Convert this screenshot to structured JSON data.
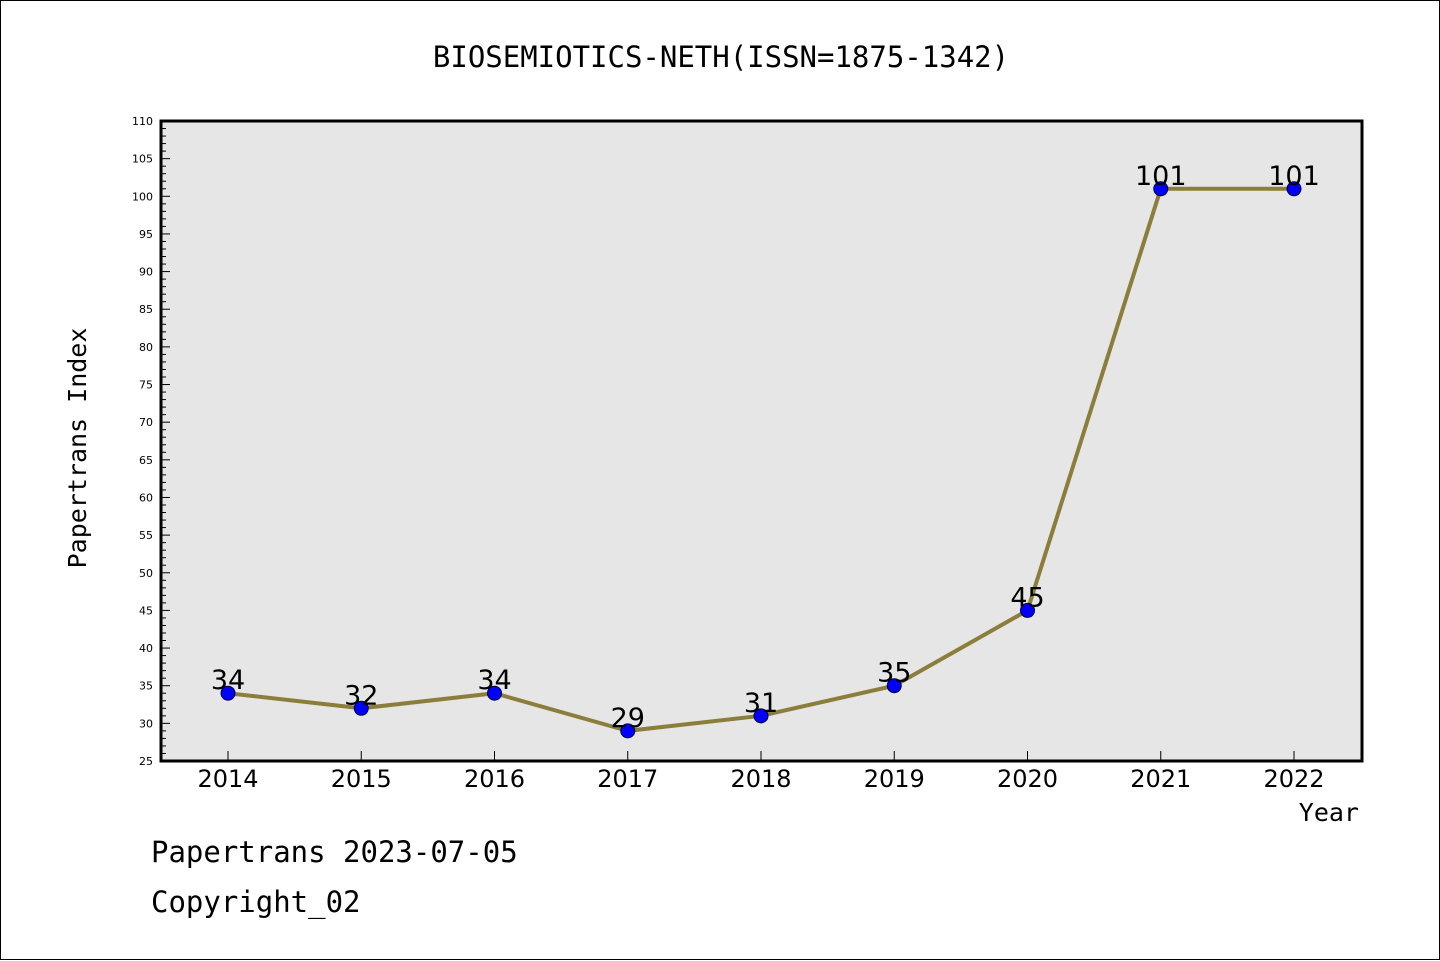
{
  "chart_data": {
    "type": "line",
    "title": "BIOSEMIOTICS-NETH(ISSN=1875-1342)",
    "xlabel": "Year",
    "ylabel": "Papertrans Index",
    "categories": [
      "2014",
      "2015",
      "2016",
      "2017",
      "2018",
      "2019",
      "2020",
      "2021",
      "2022"
    ],
    "series": [
      {
        "values": [
          34,
          32,
          34,
          29,
          31,
          35,
          45,
          101,
          101
        ]
      }
    ],
    "ylim": [
      25,
      110
    ],
    "ytick_step": 5,
    "y_minor_step": 1,
    "grid": false,
    "legend": "none",
    "colors": {
      "plot_background": "#e6e6e6",
      "line": "#8b7d3a",
      "marker": "#0000ff"
    }
  },
  "footer": {
    "date_line": "Papertrans 2023-07-05",
    "copyright_line": "Copyright_02"
  }
}
